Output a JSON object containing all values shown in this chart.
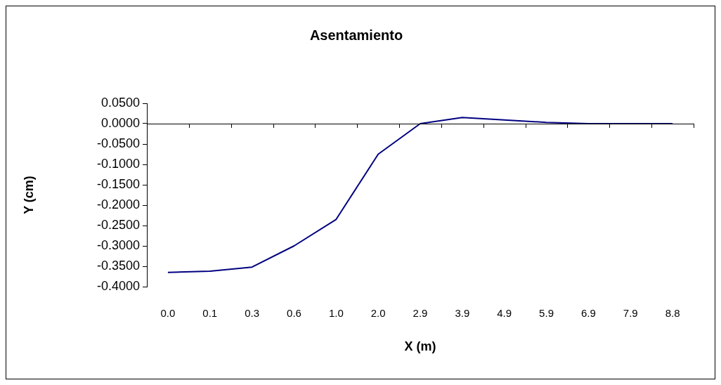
{
  "chart_data": {
    "type": "line",
    "title": "Asentamiento",
    "xlabel": "X (m)",
    "ylabel": "Y (cm)",
    "categories": [
      "0.0",
      "0.1",
      "0.3",
      "0.6",
      "1.0",
      "2.0",
      "2.9",
      "3.9",
      "4.9",
      "5.9",
      "6.9",
      "7.9",
      "8.8"
    ],
    "series": [
      {
        "color": "#000080",
        "values": [
          -0.365,
          -0.362,
          -0.352,
          -0.3,
          -0.235,
          -0.075,
          0,
          0.015,
          0.009,
          0.003,
          0,
          0,
          0
        ]
      }
    ],
    "ylim": [
      -0.4,
      0.05
    ],
    "yticks": [
      {
        "value": -0.4,
        "label": "-0.4000"
      },
      {
        "value": -0.35,
        "label": "-0.3500"
      },
      {
        "value": -0.3,
        "label": "-0.3000"
      },
      {
        "value": -0.25,
        "label": "-0.2500"
      },
      {
        "value": -0.2,
        "label": "-0.2000"
      },
      {
        "value": -0.15,
        "label": "-0.1500"
      },
      {
        "value": -0.1,
        "label": "-0.1000"
      },
      {
        "value": -0.05,
        "label": "-0.0500"
      },
      {
        "value": 0,
        "label": "0.0000"
      },
      {
        "value": 0.05,
        "label": "0.0500"
      }
    ],
    "marker": "none",
    "legend": false
  }
}
